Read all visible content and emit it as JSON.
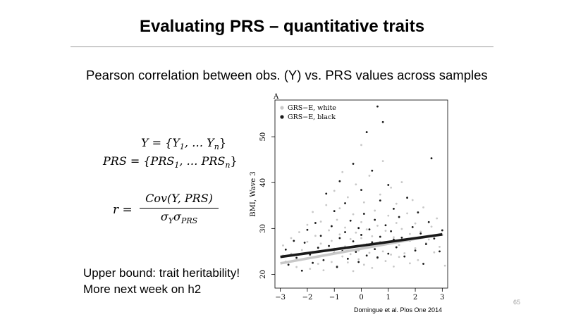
{
  "slide": {
    "title": "Evaluating PRS – quantitative traits",
    "subtitle": "Pearson correlation between obs.  (Y) vs. PRS values across samples",
    "note_line1": "Upper bound: trait heritability!",
    "note_line2": "More next week on h2",
    "page_number": "65",
    "citation": "Domingue et al. Plos One 2014"
  },
  "equations": {
    "y_lhs": "Y",
    "y_set": "{Y",
    "y_sub1": "1",
    "y_mid": ", … Y",
    "y_subn": "n",
    "prs_lhs": "PRS",
    "prs_set": "{PRS",
    "prs_sub1": "1",
    "prs_mid": ", … PRS",
    "prs_subn": "n",
    "r_lhs": "r =",
    "r_num": "Cov(Y, PRS)",
    "r_den_a": "σ",
    "r_den_a_sub": "Y",
    "r_den_b": "σ",
    "r_den_b_sub": "PRS"
  },
  "chart_data": {
    "type": "scatter",
    "panel_label": "A",
    "ylabel": "BMI, Wave 3",
    "xlabel": "",
    "xlim": [
      -3.2,
      3.2
    ],
    "ylim": [
      17,
      58
    ],
    "xticks": [
      -3,
      -2,
      -1,
      0,
      1,
      2,
      3
    ],
    "yticks": [
      20,
      30,
      40,
      50
    ],
    "legend_position": "top-left",
    "series": [
      {
        "name": "GRS−E, white",
        "color": "#c8c8c8",
        "fit_line": {
          "x": [
            -3,
            3
          ],
          "y": [
            22.4,
            28.8
          ]
        },
        "points": [
          [
            -2.9,
            24.1
          ],
          [
            -2.9,
            26.3
          ],
          [
            -2.8,
            22.8
          ],
          [
            -2.6,
            27.9
          ],
          [
            -2.6,
            24.5
          ],
          [
            -2.4,
            21.6
          ],
          [
            -2.3,
            29.2
          ],
          [
            -2.2,
            25.3
          ],
          [
            -2.1,
            23.4
          ],
          [
            -2.0,
            30.8
          ],
          [
            -2.0,
            27.1
          ],
          [
            -1.9,
            21.2
          ],
          [
            -1.8,
            24.9
          ],
          [
            -1.8,
            33.6
          ],
          [
            -1.7,
            28.4
          ],
          [
            -1.6,
            22.3
          ],
          [
            -1.5,
            26.7
          ],
          [
            -1.5,
            31.5
          ],
          [
            -1.4,
            20.9
          ],
          [
            -1.3,
            24.2
          ],
          [
            -1.3,
            35.1
          ],
          [
            -1.2,
            29.6
          ],
          [
            -1.1,
            22.7
          ],
          [
            -1.1,
            27.3
          ],
          [
            -1.0,
            38.2
          ],
          [
            -1.0,
            25.6
          ],
          [
            -0.9,
            31.9
          ],
          [
            -0.9,
            21.8
          ],
          [
            -0.8,
            28.7
          ],
          [
            -0.8,
            34.4
          ],
          [
            -0.7,
            23.9
          ],
          [
            -0.7,
            42.3
          ],
          [
            -0.6,
            26.1
          ],
          [
            -0.6,
            30.2
          ],
          [
            -0.5,
            22.6
          ],
          [
            -0.5,
            36.8
          ],
          [
            -0.4,
            27.7
          ],
          [
            -0.4,
            24.4
          ],
          [
            -0.3,
            33.1
          ],
          [
            -0.3,
            20.7
          ],
          [
            -0.2,
            29.1
          ],
          [
            -0.2,
            39.6
          ],
          [
            -0.1,
            25.2
          ],
          [
            -0.1,
            23.3
          ],
          [
            0.0,
            31.4
          ],
          [
            0.0,
            27.9
          ],
          [
            0.0,
            48.2
          ],
          [
            0.1,
            22.1
          ],
          [
            0.1,
            35.7
          ],
          [
            0.2,
            26.6
          ],
          [
            0.2,
            29.8
          ],
          [
            0.3,
            24.7
          ],
          [
            0.3,
            41.5
          ],
          [
            0.4,
            28.3
          ],
          [
            0.4,
            21.4
          ],
          [
            0.5,
            33.9
          ],
          [
            0.5,
            26.2
          ],
          [
            0.6,
            30.6
          ],
          [
            0.6,
            23.5
          ],
          [
            0.7,
            37.4
          ],
          [
            0.7,
            27.1
          ],
          [
            0.8,
            25.0
          ],
          [
            0.8,
            44.7
          ],
          [
            0.9,
            29.5
          ],
          [
            0.9,
            22.9
          ],
          [
            1.0,
            32.8
          ],
          [
            1.0,
            26.9
          ],
          [
            1.1,
            24.3
          ],
          [
            1.1,
            38.9
          ],
          [
            1.2,
            28.1
          ],
          [
            1.2,
            21.7
          ],
          [
            1.3,
            31.2
          ],
          [
            1.3,
            35.4
          ],
          [
            1.4,
            26.4
          ],
          [
            1.4,
            23.8
          ],
          [
            1.5,
            29.9
          ],
          [
            1.5,
            40.1
          ],
          [
            1.6,
            27.5
          ],
          [
            1.6,
            24.6
          ],
          [
            1.7,
            33.3
          ],
          [
            1.8,
            22.4
          ],
          [
            1.8,
            28.8
          ],
          [
            1.9,
            36.2
          ],
          [
            2.0,
            25.7
          ],
          [
            2.0,
            31.1
          ],
          [
            2.1,
            23.1
          ],
          [
            2.2,
            29.3
          ],
          [
            2.3,
            34.6
          ],
          [
            2.4,
            26.8
          ],
          [
            2.5,
            27.6
          ],
          [
            2.6,
            30.4
          ],
          [
            2.7,
            24.8
          ],
          [
            2.8,
            32.2
          ],
          [
            2.9,
            26.0
          ],
          [
            3.0,
            28.6
          ],
          [
            3.1,
            21.9
          ]
        ]
      },
      {
        "name": "GRS−E, black",
        "color": "#1a1a1a",
        "fit_line": {
          "x": [
            -3,
            3
          ],
          "y": [
            23.8,
            28.7
          ]
        },
        "points": [
          [
            -2.8,
            25.4
          ],
          [
            -2.7,
            22.1
          ],
          [
            -2.5,
            27.3
          ],
          [
            -2.4,
            23.6
          ],
          [
            -2.2,
            20.8
          ],
          [
            -2.1,
            26.9
          ],
          [
            -2.0,
            29.7
          ],
          [
            -1.9,
            24.3
          ],
          [
            -1.8,
            22.5
          ],
          [
            -1.7,
            31.2
          ],
          [
            -1.6,
            25.8
          ],
          [
            -1.5,
            28.4
          ],
          [
            -1.4,
            23.1
          ],
          [
            -1.3,
            37.6
          ],
          [
            -1.2,
            26.2
          ],
          [
            -1.1,
            30.5
          ],
          [
            -1.0,
            24.7
          ],
          [
            -1.0,
            33.8
          ],
          [
            -0.9,
            21.6
          ],
          [
            -0.8,
            27.9
          ],
          [
            -0.8,
            40.3
          ],
          [
            -0.7,
            25.1
          ],
          [
            -0.6,
            29.2
          ],
          [
            -0.6,
            35.5
          ],
          [
            -0.5,
            23.4
          ],
          [
            -0.4,
            31.7
          ],
          [
            -0.3,
            27.2
          ],
          [
            -0.3,
            44.1
          ],
          [
            -0.2,
            24.9
          ],
          [
            -0.1,
            30.1
          ],
          [
            -0.1,
            22.7
          ],
          [
            0.0,
            28.6
          ],
          [
            0.0,
            38.4
          ],
          [
            0.1,
            26.4
          ],
          [
            0.1,
            33.2
          ],
          [
            0.2,
            24.1
          ],
          [
            0.2,
            51.0
          ],
          [
            0.3,
            29.8
          ],
          [
            0.4,
            27.0
          ],
          [
            0.4,
            42.6
          ],
          [
            0.5,
            25.5
          ],
          [
            0.5,
            31.9
          ],
          [
            0.6,
            23.7
          ],
          [
            0.6,
            56.6
          ],
          [
            0.7,
            28.2
          ],
          [
            0.7,
            36.1
          ],
          [
            0.8,
            26.8
          ],
          [
            0.8,
            53.2
          ],
          [
            0.9,
            30.7
          ],
          [
            1.0,
            24.5
          ],
          [
            1.0,
            39.5
          ],
          [
            1.1,
            29.4
          ],
          [
            1.2,
            27.6
          ],
          [
            1.2,
            34.3
          ],
          [
            1.3,
            25.9
          ],
          [
            1.4,
            32.5
          ],
          [
            1.5,
            28.0
          ],
          [
            1.6,
            23.9
          ],
          [
            1.7,
            36.7
          ],
          [
            1.8,
            27.4
          ],
          [
            1.9,
            30.3
          ],
          [
            2.0,
            25.2
          ],
          [
            2.1,
            33.5
          ],
          [
            2.2,
            28.9
          ],
          [
            2.3,
            22.3
          ],
          [
            2.4,
            26.6
          ],
          [
            2.5,
            31.4
          ],
          [
            2.6,
            45.3
          ],
          [
            2.7,
            27.8
          ],
          [
            2.9,
            25.0
          ],
          [
            3.0,
            29.6
          ]
        ]
      }
    ]
  }
}
